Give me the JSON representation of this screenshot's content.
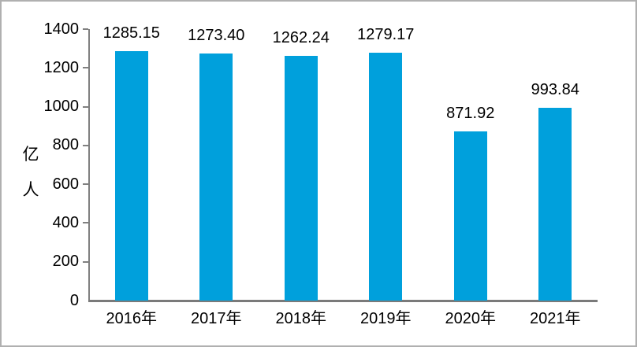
{
  "chart_data": {
    "type": "bar",
    "title": "",
    "xlabel": "",
    "ylabel": "亿人",
    "ylabel_lines": [
      "亿",
      "人"
    ],
    "categories": [
      "2016年",
      "2017年",
      "2018年",
      "2019年",
      "2020年",
      "2021年"
    ],
    "values": [
      1285.15,
      1273.4,
      1262.24,
      1279.17,
      871.92,
      993.84
    ],
    "value_labels": [
      "1285.15",
      "1273.40",
      "1262.24",
      "1279.17",
      "871.92",
      "993.84"
    ],
    "ylim": [
      0,
      1400
    ],
    "yticks": [
      0,
      200,
      400,
      600,
      800,
      1000,
      1200,
      1400
    ],
    "ytick_labels": [
      "0",
      "200",
      "400",
      "600",
      "800",
      "1000",
      "1200",
      "1400"
    ],
    "grid": false,
    "legend": "none",
    "colors": {
      "bar": "#00a0dc",
      "axis": "#808080",
      "text": "#000000",
      "background": "#ffffff",
      "frame_border": "#b0b0b0"
    }
  }
}
